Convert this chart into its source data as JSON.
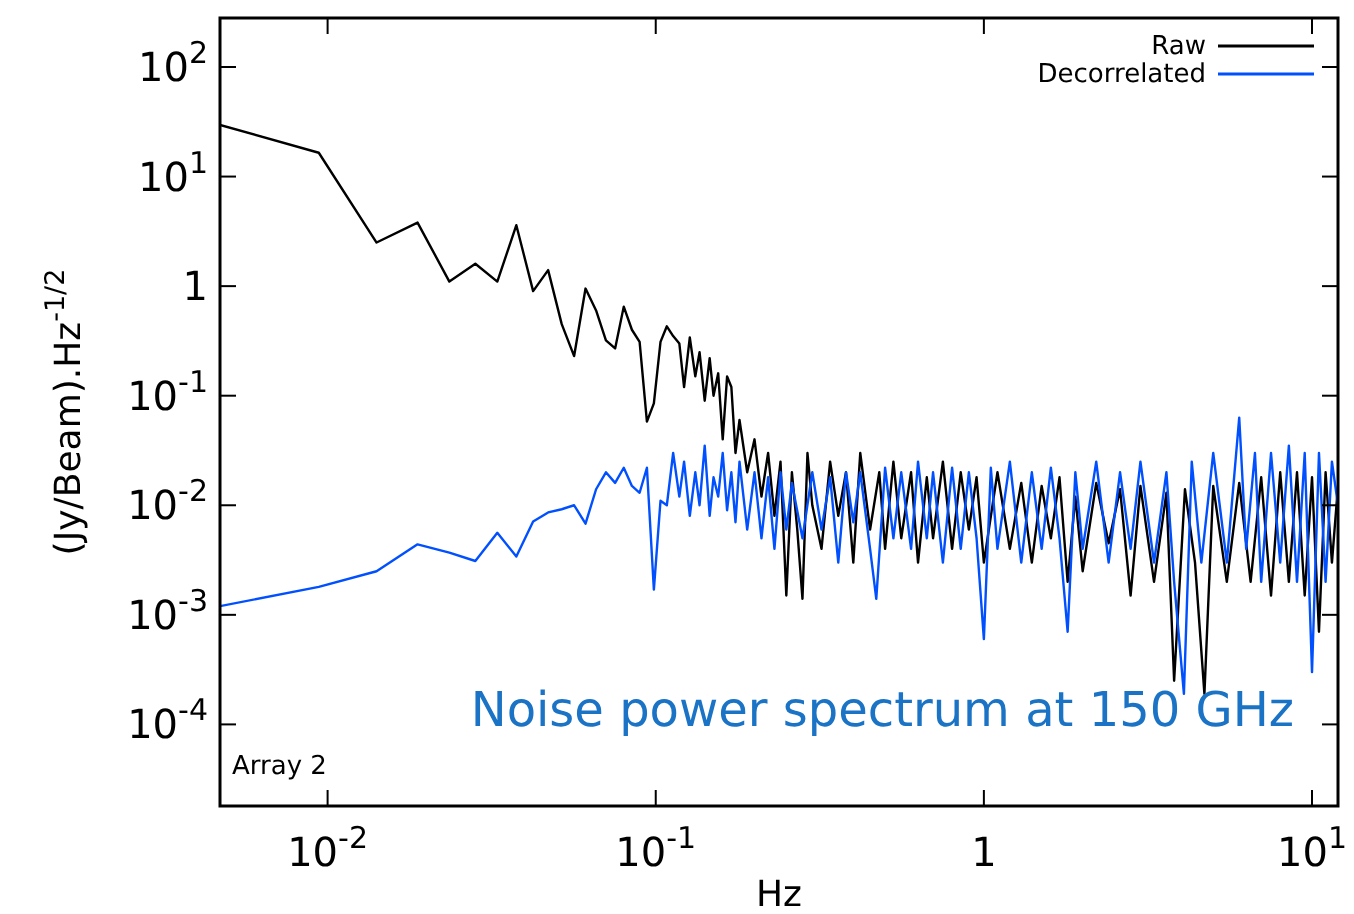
{
  "chart_data": {
    "type": "line",
    "xlabel": "Hz",
    "ylabel": "(Jy/Beam).Hz$^{-1/2}$",
    "log": "xy",
    "legend": "top right",
    "line_style": "solid",
    "xlim": [
      0.0047,
      12
    ],
    "ylim": [
      1.8e-05,
      280
    ],
    "xticks": [
      {
        "value": 0.01,
        "label": "10$^{-2}$"
      },
      {
        "value": 0.1,
        "label": "10$^{-1}$"
      },
      1,
      {
        "value": 10,
        "label": "10$^{1}$"
      }
    ],
    "yticks": [
      {
        "value": 0.0001,
        "label": "10$^{-4}$"
      },
      {
        "value": 0.001,
        "label": "10$^{-3}$"
      },
      {
        "value": 0.01,
        "label": "10$^{-2}$"
      },
      {
        "value": 0.1,
        "label": "10$^{-1}$"
      },
      1,
      {
        "value": 10,
        "label": "10$^{1}$"
      },
      {
        "value": 100,
        "label": "10$^{2}$"
      }
    ],
    "annotations": [
      "Array 2",
      "Noise power spectrum at 150 GHz"
    ],
    "series": [
      {
        "name": "Raw",
        "color": "#000000",
        "x": [
          0.0047,
          0.0094,
          0.0141,
          0.0188,
          0.0235,
          0.0282,
          0.0329,
          0.0376,
          0.0423,
          0.047,
          0.0517,
          0.0564,
          0.0611,
          0.0658,
          0.0705,
          0.0752,
          0.0799,
          0.0846,
          0.0893,
          0.094,
          0.0987,
          0.1034,
          0.1081,
          0.113,
          0.118,
          0.122,
          0.127,
          0.132,
          0.136,
          0.141,
          0.146,
          0.15,
          0.155,
          0.16,
          0.165,
          0.17,
          0.175,
          0.18,
          0.19,
          0.2,
          0.21,
          0.22,
          0.23,
          0.24,
          0.25,
          0.26,
          0.27,
          0.28,
          0.29,
          0.3,
          0.32,
          0.34,
          0.36,
          0.38,
          0.4,
          0.42,
          0.45,
          0.48,
          0.5,
          0.53,
          0.56,
          0.6,
          0.63,
          0.67,
          0.7,
          0.75,
          0.8,
          0.85,
          0.9,
          0.95,
          1.0,
          1.1,
          1.2,
          1.3,
          1.4,
          1.5,
          1.6,
          1.7,
          1.8,
          1.9,
          2.0,
          2.2,
          2.4,
          2.6,
          2.8,
          3.0,
          3.3,
          3.6,
          3.8,
          4.1,
          4.4,
          4.7,
          5.0,
          5.5,
          6.0,
          6.5,
          7.0,
          7.5,
          8.0,
          8.5,
          9.0,
          9.5,
          10,
          10.5,
          11,
          11.5,
          12
        ],
        "values": [
          29.6,
          16.5,
          2.5,
          3.8,
          1.1,
          1.6,
          1.1,
          3.6,
          0.9,
          1.4,
          0.45,
          0.23,
          0.95,
          0.6,
          0.32,
          0.27,
          0.65,
          0.4,
          0.31,
          0.058,
          0.085,
          0.31,
          0.43,
          0.35,
          0.3,
          0.12,
          0.34,
          0.15,
          0.25,
          0.09,
          0.22,
          0.1,
          0.16,
          0.04,
          0.15,
          0.12,
          0.03,
          0.06,
          0.02,
          0.04,
          0.012,
          0.03,
          0.008,
          0.025,
          0.0015,
          0.02,
          0.006,
          0.0014,
          0.03,
          0.01,
          0.004,
          0.025,
          0.008,
          0.02,
          0.003,
          0.03,
          0.006,
          0.02,
          0.004,
          0.025,
          0.005,
          0.02,
          0.003,
          0.018,
          0.005,
          0.025,
          0.004,
          0.02,
          0.006,
          0.018,
          0.003,
          0.02,
          0.004,
          0.016,
          0.003,
          0.015,
          0.005,
          0.018,
          0.002,
          0.012,
          0.0025,
          0.016,
          0.0045,
          0.014,
          0.0015,
          0.015,
          0.002,
          0.013,
          0.00025,
          0.014,
          0.003,
          0.00019,
          0.015,
          0.002,
          0.016,
          0.002,
          0.018,
          0.0015,
          0.02,
          0.002,
          0.02,
          0.0015,
          0.018,
          0.0007,
          0.02,
          0.003,
          0.015
        ]
      },
      {
        "name": "Decorrelated",
        "color": "#0050ff",
        "x": [
          0.0047,
          0.0094,
          0.0141,
          0.0188,
          0.0235,
          0.0282,
          0.0329,
          0.0376,
          0.0423,
          0.047,
          0.0517,
          0.0564,
          0.0611,
          0.0658,
          0.0705,
          0.0752,
          0.0799,
          0.0846,
          0.0893,
          0.094,
          0.0987,
          0.1034,
          0.1081,
          0.113,
          0.118,
          0.122,
          0.127,
          0.132,
          0.136,
          0.141,
          0.146,
          0.15,
          0.155,
          0.16,
          0.165,
          0.17,
          0.175,
          0.18,
          0.19,
          0.2,
          0.21,
          0.22,
          0.23,
          0.24,
          0.25,
          0.26,
          0.28,
          0.3,
          0.32,
          0.34,
          0.36,
          0.38,
          0.4,
          0.42,
          0.45,
          0.47,
          0.5,
          0.53,
          0.56,
          0.6,
          0.63,
          0.67,
          0.7,
          0.75,
          0.8,
          0.85,
          0.9,
          0.95,
          1.0,
          1.05,
          1.1,
          1.2,
          1.3,
          1.4,
          1.5,
          1.6,
          1.7,
          1.8,
          1.9,
          2.0,
          2.2,
          2.4,
          2.6,
          2.8,
          3.0,
          3.3,
          3.6,
          3.8,
          4.07,
          4.3,
          4.6,
          5.0,
          5.5,
          6.0,
          6.3,
          6.7,
          7.0,
          7.5,
          8.0,
          8.5,
          9.0,
          9.5,
          10.0,
          10.5,
          11,
          11.5,
          12
        ],
        "values": [
          0.0012,
          0.0018,
          0.0025,
          0.0044,
          0.0037,
          0.0031,
          0.0056,
          0.0034,
          0.0071,
          0.0086,
          0.0092,
          0.01,
          0.0068,
          0.014,
          0.02,
          0.016,
          0.022,
          0.015,
          0.013,
          0.022,
          0.0017,
          0.011,
          0.01,
          0.03,
          0.012,
          0.025,
          0.008,
          0.02,
          0.01,
          0.035,
          0.008,
          0.018,
          0.012,
          0.03,
          0.009,
          0.02,
          0.007,
          0.025,
          0.006,
          0.02,
          0.005,
          0.018,
          0.004,
          0.02,
          0.006,
          0.016,
          0.005,
          0.02,
          0.006,
          0.018,
          0.003,
          0.02,
          0.007,
          0.02,
          0.004,
          0.0014,
          0.022,
          0.005,
          0.02,
          0.004,
          0.025,
          0.005,
          0.02,
          0.003,
          0.022,
          0.004,
          0.02,
          0.005,
          0.0006,
          0.022,
          0.004,
          0.025,
          0.003,
          0.02,
          0.004,
          0.022,
          0.005,
          0.0007,
          0.02,
          0.004,
          0.025,
          0.003,
          0.02,
          0.004,
          0.025,
          0.003,
          0.02,
          0.002,
          0.00019,
          0.025,
          0.003,
          0.03,
          0.003,
          0.063,
          0.004,
          0.03,
          0.002,
          0.03,
          0.003,
          0.035,
          0.002,
          0.03,
          0.0003,
          0.03,
          0.002,
          0.025,
          0.01
        ]
      }
    ]
  }
}
